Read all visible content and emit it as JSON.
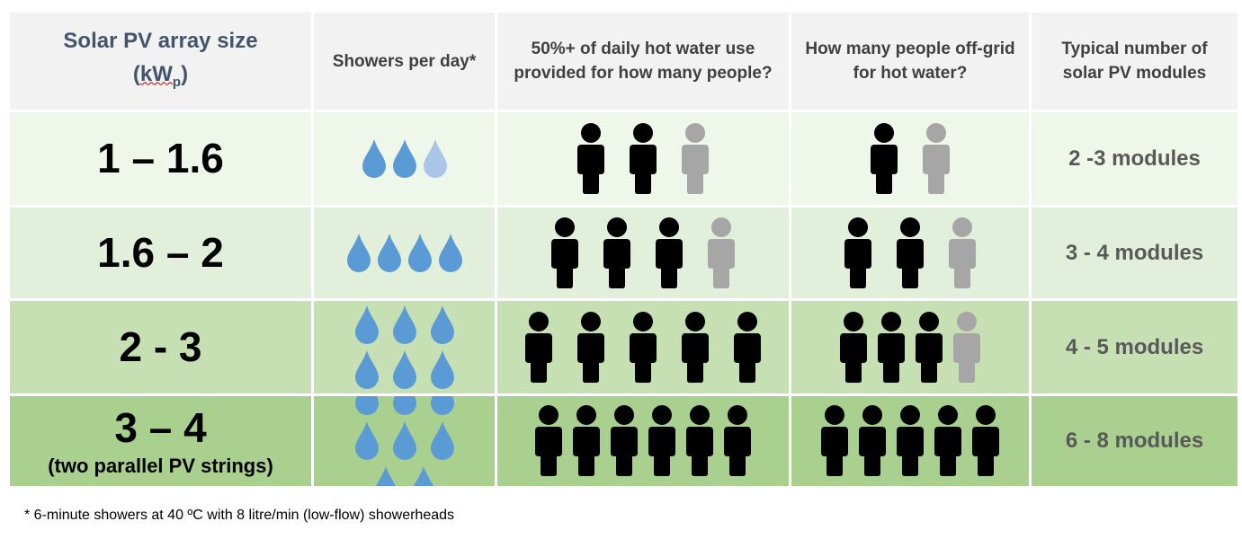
{
  "headers": {
    "size_line1": "Solar PV array size",
    "size_open": "(",
    "size_unit": "kW",
    "size_sub": "p",
    "size_close": ")",
    "showers": "Showers per day*",
    "fifty": "50%+ of daily hot water use provided for how many people?",
    "offgrid": "How many people off-grid for hot water?",
    "modules": "Typical number of solar PV modules"
  },
  "rows": [
    {
      "size": "1 – 1.6",
      "note": "",
      "showers": 2.5,
      "fifty_full": 2,
      "fifty_grey": 1,
      "offgrid_full": 1,
      "offgrid_grey": 1,
      "modules": "2 -3 modules"
    },
    {
      "size": "1.6 – 2",
      "note": "",
      "showers": 4,
      "fifty_full": 3,
      "fifty_grey": 1,
      "offgrid_full": 2,
      "offgrid_grey": 1,
      "modules": "3 - 4 modules"
    },
    {
      "size": "2 - 3",
      "note": "",
      "showers": 6,
      "fifty_full": 5,
      "fifty_grey": 0,
      "offgrid_full": 3,
      "offgrid_grey": 1,
      "modules": "4 - 5 modules"
    },
    {
      "size": "3 – 4",
      "note": "(two parallel PV strings)",
      "showers": 8,
      "fifty_full": 6,
      "fifty_grey": 0,
      "offgrid_full": 5,
      "offgrid_grey": 0,
      "modules": "6 - 8 modules"
    }
  ],
  "footnote": "* 6-minute showers at 40 ºC with 8 litre/min (low-flow) showerheads",
  "colors": {
    "drop": "#5b9bd5",
    "drop_light": "#a9c5e8",
    "person": "#000000",
    "person_grey": "#a6a6a6",
    "header_bg": "#f2f2f2",
    "row_bg": [
      "#eff6ea",
      "#e2efda",
      "#c6e0b4",
      "#a9d08e"
    ]
  }
}
